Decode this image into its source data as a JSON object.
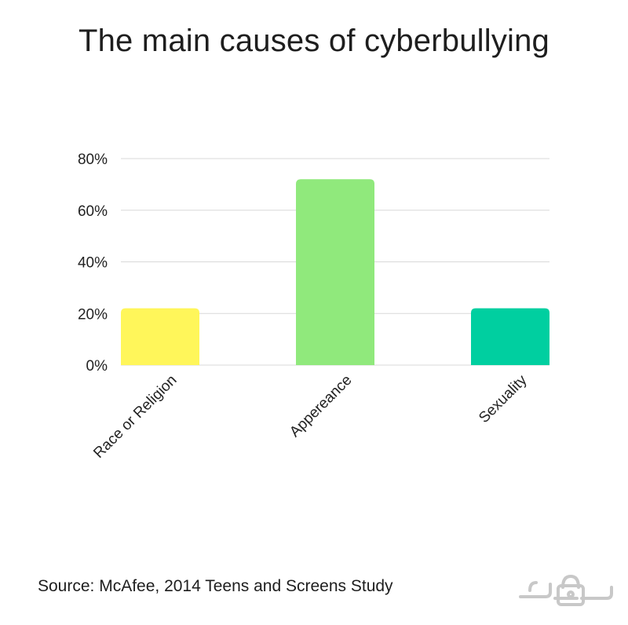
{
  "title": "The main causes of cyberbullying",
  "source": "Source: McAfee, 2014 Teens and Screens Study",
  "chart_data": {
    "type": "bar",
    "title": "The main causes of cyberbullying",
    "categories": [
      "Race or Religion",
      "Appereance",
      "Sexuality"
    ],
    "values": [
      22,
      72,
      22
    ],
    "value_unit": "%",
    "ylim": [
      0,
      80
    ],
    "yticks": [
      0,
      20,
      40,
      60,
      80
    ],
    "ytick_labels": [
      "0%",
      "20%",
      "40%",
      "60%",
      "80%"
    ],
    "colors": [
      "#fff65a",
      "#90e97c",
      "#00cfa0"
    ],
    "grid": true,
    "gridline_color": "#d9d9d9",
    "xlabel": "",
    "ylabel": ""
  },
  "watermark": {
    "icon": "lock-logo-icon",
    "color": "#c8c8c8"
  }
}
